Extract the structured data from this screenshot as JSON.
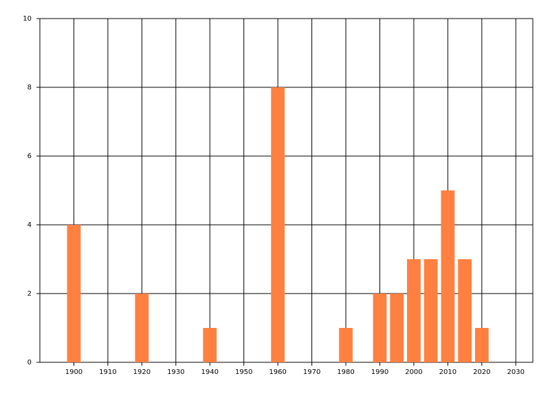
{
  "chart_data": {
    "type": "bar",
    "x": [
      1900,
      1920,
      1940,
      1960,
      1980,
      1990,
      1995,
      2000,
      2005,
      2010,
      2015,
      2020
    ],
    "values": [
      4,
      2,
      1,
      8,
      1,
      2,
      2,
      3,
      3,
      5,
      3,
      1
    ],
    "color": "#ff8040",
    "xlim": [
      1890,
      2035
    ],
    "xticks": [
      1900,
      1910,
      1920,
      1930,
      1940,
      1950,
      1960,
      1970,
      1980,
      1990,
      2000,
      2010,
      2020,
      2030
    ],
    "ylim": [
      0,
      10
    ],
    "yticks": [
      0,
      2,
      4,
      6,
      8,
      10
    ],
    "grid": true
  }
}
